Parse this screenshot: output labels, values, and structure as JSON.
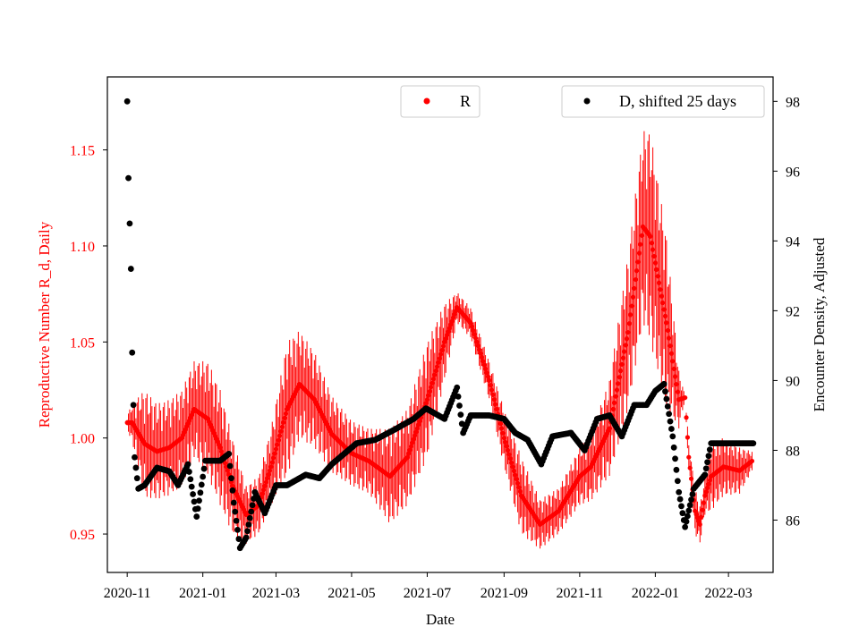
{
  "chart_data": {
    "type": "scatter",
    "x_axis": {
      "label": "Date",
      "tick_labels": [
        "2020-11",
        "2021-01",
        "2021-03",
        "2021-05",
        "2021-07",
        "2021-09",
        "2021-11",
        "2022-01",
        "2022-03"
      ],
      "tick_dates": [
        "2020-11-01",
        "2021-01-01",
        "2021-03-01",
        "2021-05-01",
        "2021-07-01",
        "2021-09-01",
        "2021-11-01",
        "2022-01-01",
        "2022-03-01"
      ],
      "range": [
        "2020-10-16",
        "2022-04-06"
      ]
    },
    "y_left": {
      "label": "Reproductive Number R_d, Daily",
      "color": "#ff0000",
      "ticks": [
        0.95,
        1.0,
        1.05,
        1.1,
        1.15
      ],
      "tick_labels": [
        "0.95",
        "1.00",
        "1.05",
        "1.10",
        "1.15"
      ],
      "range": [
        0.93,
        1.188
      ]
    },
    "y_right": {
      "label": "Encounter Density, Adjusted",
      "color": "#000000",
      "ticks": [
        86,
        88,
        90,
        92,
        94,
        96,
        98
      ],
      "tick_labels": [
        "86",
        "88",
        "90",
        "92",
        "94",
        "96",
        "98"
      ],
      "range": [
        84.5,
        98.7
      ]
    },
    "series": [
      {
        "name": "R",
        "axis": "left",
        "color": "#ff0000",
        "marker": "point+errorbar",
        "legend_label": "R",
        "legend_position": "upper-center",
        "anchors": [
          [
            "2020-11-01",
            1.008,
            0.004
          ],
          [
            "2020-11-05",
            1.008,
            0.01
          ],
          [
            "2020-11-15",
            0.997,
            0.028
          ],
          [
            "2020-11-25",
            0.993,
            0.025
          ],
          [
            "2020-12-05",
            0.995,
            0.025
          ],
          [
            "2020-12-15",
            1.0,
            0.025
          ],
          [
            "2020-12-25",
            1.015,
            0.025
          ],
          [
            "2021-01-05",
            1.01,
            0.03
          ],
          [
            "2021-01-15",
            0.995,
            0.03
          ],
          [
            "2021-01-25",
            0.975,
            0.025
          ],
          [
            "2021-02-05",
            0.96,
            0.015
          ],
          [
            "2021-02-15",
            0.965,
            0.015
          ],
          [
            "2021-02-25",
            0.985,
            0.02
          ],
          [
            "2021-03-10",
            1.015,
            0.035
          ],
          [
            "2021-03-20",
            1.028,
            0.028
          ],
          [
            "2021-04-01",
            1.02,
            0.025
          ],
          [
            "2021-04-15",
            1.002,
            0.02
          ],
          [
            "2021-05-01",
            0.992,
            0.017
          ],
          [
            "2021-05-15",
            0.988,
            0.017
          ],
          [
            "2021-06-01",
            0.98,
            0.025
          ],
          [
            "2021-06-15",
            0.99,
            0.025
          ],
          [
            "2021-07-01",
            1.02,
            0.03
          ],
          [
            "2021-07-15",
            1.05,
            0.02
          ],
          [
            "2021-07-25",
            1.068,
            0.008
          ],
          [
            "2021-08-05",
            1.06,
            0.008
          ],
          [
            "2021-08-20",
            1.03,
            0.01
          ],
          [
            "2021-09-01",
            1.0,
            0.015
          ],
          [
            "2021-09-15",
            0.97,
            0.02
          ],
          [
            "2021-09-30",
            0.955,
            0.013
          ],
          [
            "2021-10-15",
            0.962,
            0.012
          ],
          [
            "2021-11-01",
            0.98,
            0.015
          ],
          [
            "2021-11-10",
            0.985,
            0.018
          ],
          [
            "2021-11-25",
            1.005,
            0.025
          ],
          [
            "2021-12-10",
            1.055,
            0.04
          ],
          [
            "2021-12-22",
            1.11,
            0.05
          ],
          [
            "2021-12-28",
            1.105,
            0.055
          ],
          [
            "2022-01-10",
            1.06,
            0.045
          ],
          [
            "2022-01-20",
            1.02,
            0.015
          ],
          [
            "2022-01-25",
            1.021,
            0.001
          ],
          [
            "2022-01-28",
            0.99,
            0.008
          ],
          [
            "2022-02-02",
            0.962,
            0.012
          ],
          [
            "2022-02-06",
            0.955,
            0.01
          ],
          [
            "2022-02-10",
            0.97,
            0.01
          ],
          [
            "2022-02-15",
            0.98,
            0.018
          ],
          [
            "2022-02-25",
            0.985,
            0.015
          ],
          [
            "2022-03-10",
            0.983,
            0.012
          ],
          [
            "2022-03-20",
            0.988,
            0.005
          ]
        ]
      },
      {
        "name": "D, shifted 25 days",
        "axis": "right",
        "color": "#000000",
        "marker": "point",
        "legend_label": "D, shifted 25 days",
        "legend_position": "upper-right",
        "anchors": [
          [
            "2020-11-01",
            98.0
          ],
          [
            "2020-11-02",
            95.8
          ],
          [
            "2020-11-03",
            94.5
          ],
          [
            "2020-11-04",
            93.2
          ],
          [
            "2020-11-05",
            90.8
          ],
          [
            "2020-11-07",
            87.8
          ],
          [
            "2020-11-10",
            86.9
          ],
          [
            "2020-11-15",
            87.0
          ],
          [
            "2020-11-25",
            87.5
          ],
          [
            "2020-12-05",
            87.4
          ],
          [
            "2020-12-12",
            87.0
          ],
          [
            "2020-12-20",
            87.6
          ],
          [
            "2020-12-27",
            86.1
          ],
          [
            "2021-01-03",
            87.7
          ],
          [
            "2021-01-15",
            87.7
          ],
          [
            "2021-01-22",
            87.9
          ],
          [
            "2021-01-26",
            86.5
          ],
          [
            "2021-01-31",
            85.2
          ],
          [
            "2021-02-05",
            85.5
          ],
          [
            "2021-02-12",
            86.8
          ],
          [
            "2021-02-20",
            86.2
          ],
          [
            "2021-03-01",
            87.0
          ],
          [
            "2021-03-10",
            87.0
          ],
          [
            "2021-03-25",
            87.3
          ],
          [
            "2021-04-05",
            87.2
          ],
          [
            "2021-04-15",
            87.6
          ],
          [
            "2021-04-25",
            87.9
          ],
          [
            "2021-05-05",
            88.2
          ],
          [
            "2021-05-20",
            88.3
          ],
          [
            "2021-06-05",
            88.6
          ],
          [
            "2021-06-20",
            88.9
          ],
          [
            "2021-06-30",
            89.2
          ],
          [
            "2021-07-15",
            88.9
          ],
          [
            "2021-07-25",
            89.8
          ],
          [
            "2021-07-30",
            88.5
          ],
          [
            "2021-08-05",
            89.0
          ],
          [
            "2021-08-20",
            89.0
          ],
          [
            "2021-09-01",
            88.9
          ],
          [
            "2021-09-10",
            88.5
          ],
          [
            "2021-09-20",
            88.3
          ],
          [
            "2021-10-01",
            87.6
          ],
          [
            "2021-10-10",
            88.4
          ],
          [
            "2021-10-25",
            88.5
          ],
          [
            "2021-11-05",
            88.0
          ],
          [
            "2021-11-15",
            88.9
          ],
          [
            "2021-11-25",
            89.0
          ],
          [
            "2021-12-05",
            88.4
          ],
          [
            "2021-12-15",
            89.3
          ],
          [
            "2021-12-25",
            89.3
          ],
          [
            "2022-01-01",
            89.7
          ],
          [
            "2022-01-08",
            89.9
          ],
          [
            "2022-01-15",
            88.4
          ],
          [
            "2022-01-20",
            86.8
          ],
          [
            "2022-01-25",
            85.8
          ],
          [
            "2022-02-01",
            86.9
          ],
          [
            "2022-02-10",
            87.3
          ],
          [
            "2022-02-15",
            88.2
          ],
          [
            "2022-03-21",
            88.2
          ]
        ]
      }
    ]
  }
}
